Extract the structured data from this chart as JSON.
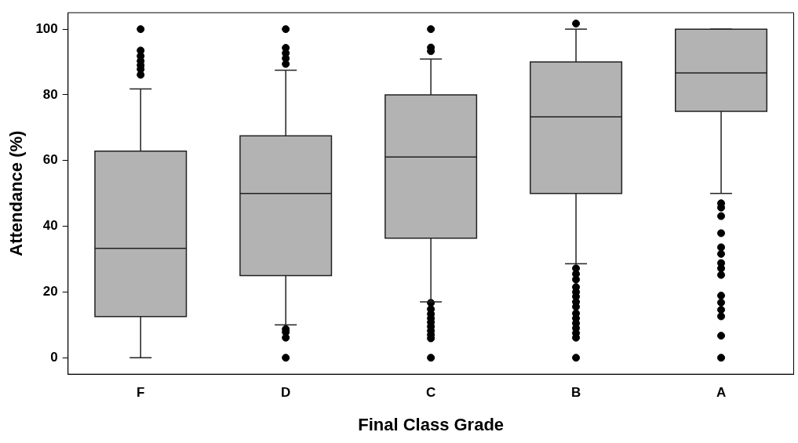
{
  "chart_data": {
    "type": "box",
    "xlabel": "Final Class Grade",
    "ylabel": "Attendance (%)",
    "categories": [
      "F",
      "D",
      "C",
      "B",
      "A"
    ],
    "color": "#b3b3b3",
    "marker": "circle",
    "grid": false,
    "legend": false,
    "ylim": [
      -5,
      105
    ],
    "yticks": [
      0,
      20,
      40,
      60,
      80,
      100
    ],
    "boxes": [
      {
        "low": 0,
        "q1": 12.5,
        "median": 33.3,
        "q3": 62.9,
        "high": 81.8,
        "outliers": [
          100,
          93.5,
          91.8,
          90.3,
          89,
          87.8,
          86.1
        ]
      },
      {
        "low": 10,
        "q1": 25,
        "median": 50,
        "q3": 67.5,
        "high": 87.5,
        "outliers": [
          100,
          94.3,
          92.7,
          91.1,
          89.4,
          8.7,
          7.8,
          6.1,
          0
        ]
      },
      {
        "low": 17,
        "q1": 36.4,
        "median": 61.1,
        "q3": 80,
        "high": 90.9,
        "outliers": [
          100,
          94.4,
          93.3,
          16.7,
          14.8,
          13.3,
          12,
          10.8,
          9.5,
          8.2,
          7,
          5.9,
          0
        ]
      },
      {
        "low": 28.6,
        "q1": 50,
        "median": 73.3,
        "q3": 90,
        "high": 100,
        "outliers": [
          101.7,
          27.2,
          25.5,
          23.8,
          21.5,
          20,
          18.6,
          17,
          15.5,
          13.5,
          12,
          10.5,
          9,
          7.5,
          6.1,
          0
        ]
      },
      {
        "low": 50,
        "q1": 75,
        "median": 86.7,
        "q3": 100,
        "high": 100,
        "outliers": [
          47,
          45.7,
          43.1,
          37.9,
          33.6,
          31.6,
          28.8,
          27.2,
          25.2,
          18.9,
          16.8,
          14.6,
          12.6,
          6.7,
          0
        ]
      }
    ]
  }
}
